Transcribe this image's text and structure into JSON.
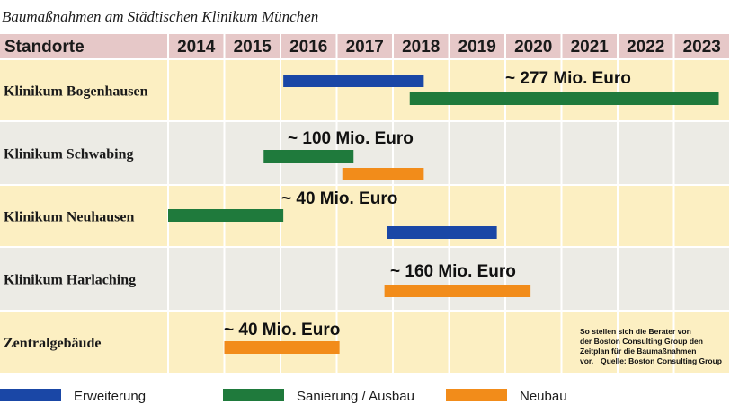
{
  "title": "Baumaßnahmen am Städtischen Klinikum München",
  "note": {
    "lines": [
      "So stellen sich die Berater von",
      "der Boston Consulting Group den",
      "Zeitplan für die Baumaßnahmen",
      "vor."
    ],
    "source": "Quelle: Boston Consulting Group"
  },
  "chart_data": {
    "type": "gantt",
    "title": "Baumaßnahmen am Städtischen Klinikum München",
    "header_label": "Standorte",
    "years": [
      "2014",
      "2015",
      "2016",
      "2017",
      "2018",
      "2019",
      "2020",
      "2021",
      "2022",
      "2023"
    ],
    "x_range": [
      2014,
      2024
    ],
    "rows": [
      {
        "label": "Klinikum Bogenhausen",
        "cost": "~ 277 Mio. Euro",
        "bars": [
          {
            "category": "Erweiterung",
            "start": 2016.05,
            "end": 2018.55
          },
          {
            "category": "Sanierung / Ausbau",
            "start": 2018.3,
            "end": 2023.8
          }
        ]
      },
      {
        "label": "Klinikum Schwabing",
        "cost": "~ 100 Mio. Euro",
        "bars": [
          {
            "category": "Sanierung / Ausbau",
            "start": 2015.7,
            "end": 2017.3
          },
          {
            "category": "Neubau",
            "start": 2017.1,
            "end": 2018.55
          }
        ]
      },
      {
        "label": "Klinikum Neuhausen",
        "cost": "~ 40 Mio. Euro",
        "bars": [
          {
            "category": "Sanierung / Ausbau",
            "start": 2014.0,
            "end": 2016.05
          },
          {
            "category": "Erweiterung",
            "start": 2017.9,
            "end": 2019.85
          }
        ]
      },
      {
        "label": "Klinikum Harlaching",
        "cost": "~ 160 Mio. Euro",
        "bars": [
          {
            "category": "Neubau",
            "start": 2017.85,
            "end": 2020.45
          }
        ]
      },
      {
        "label": "Zentralgebäude",
        "cost": "~ 40 Mio. Euro",
        "bars": [
          {
            "category": "Neubau",
            "start": 2015.0,
            "end": 2017.05
          }
        ]
      }
    ],
    "legend": [
      {
        "name": "Erweiterung",
        "color": "#1a47a6"
      },
      {
        "name": "Sanierung / Ausbau",
        "color": "#1f7a3c"
      },
      {
        "name": "Neubau",
        "color": "#f28c1a"
      }
    ],
    "colors": {
      "header_bg": "#e6c8c8",
      "row_yellow": "#fcefc2",
      "row_gray": "#ecebe5",
      "gridline": "#ffffff"
    }
  }
}
